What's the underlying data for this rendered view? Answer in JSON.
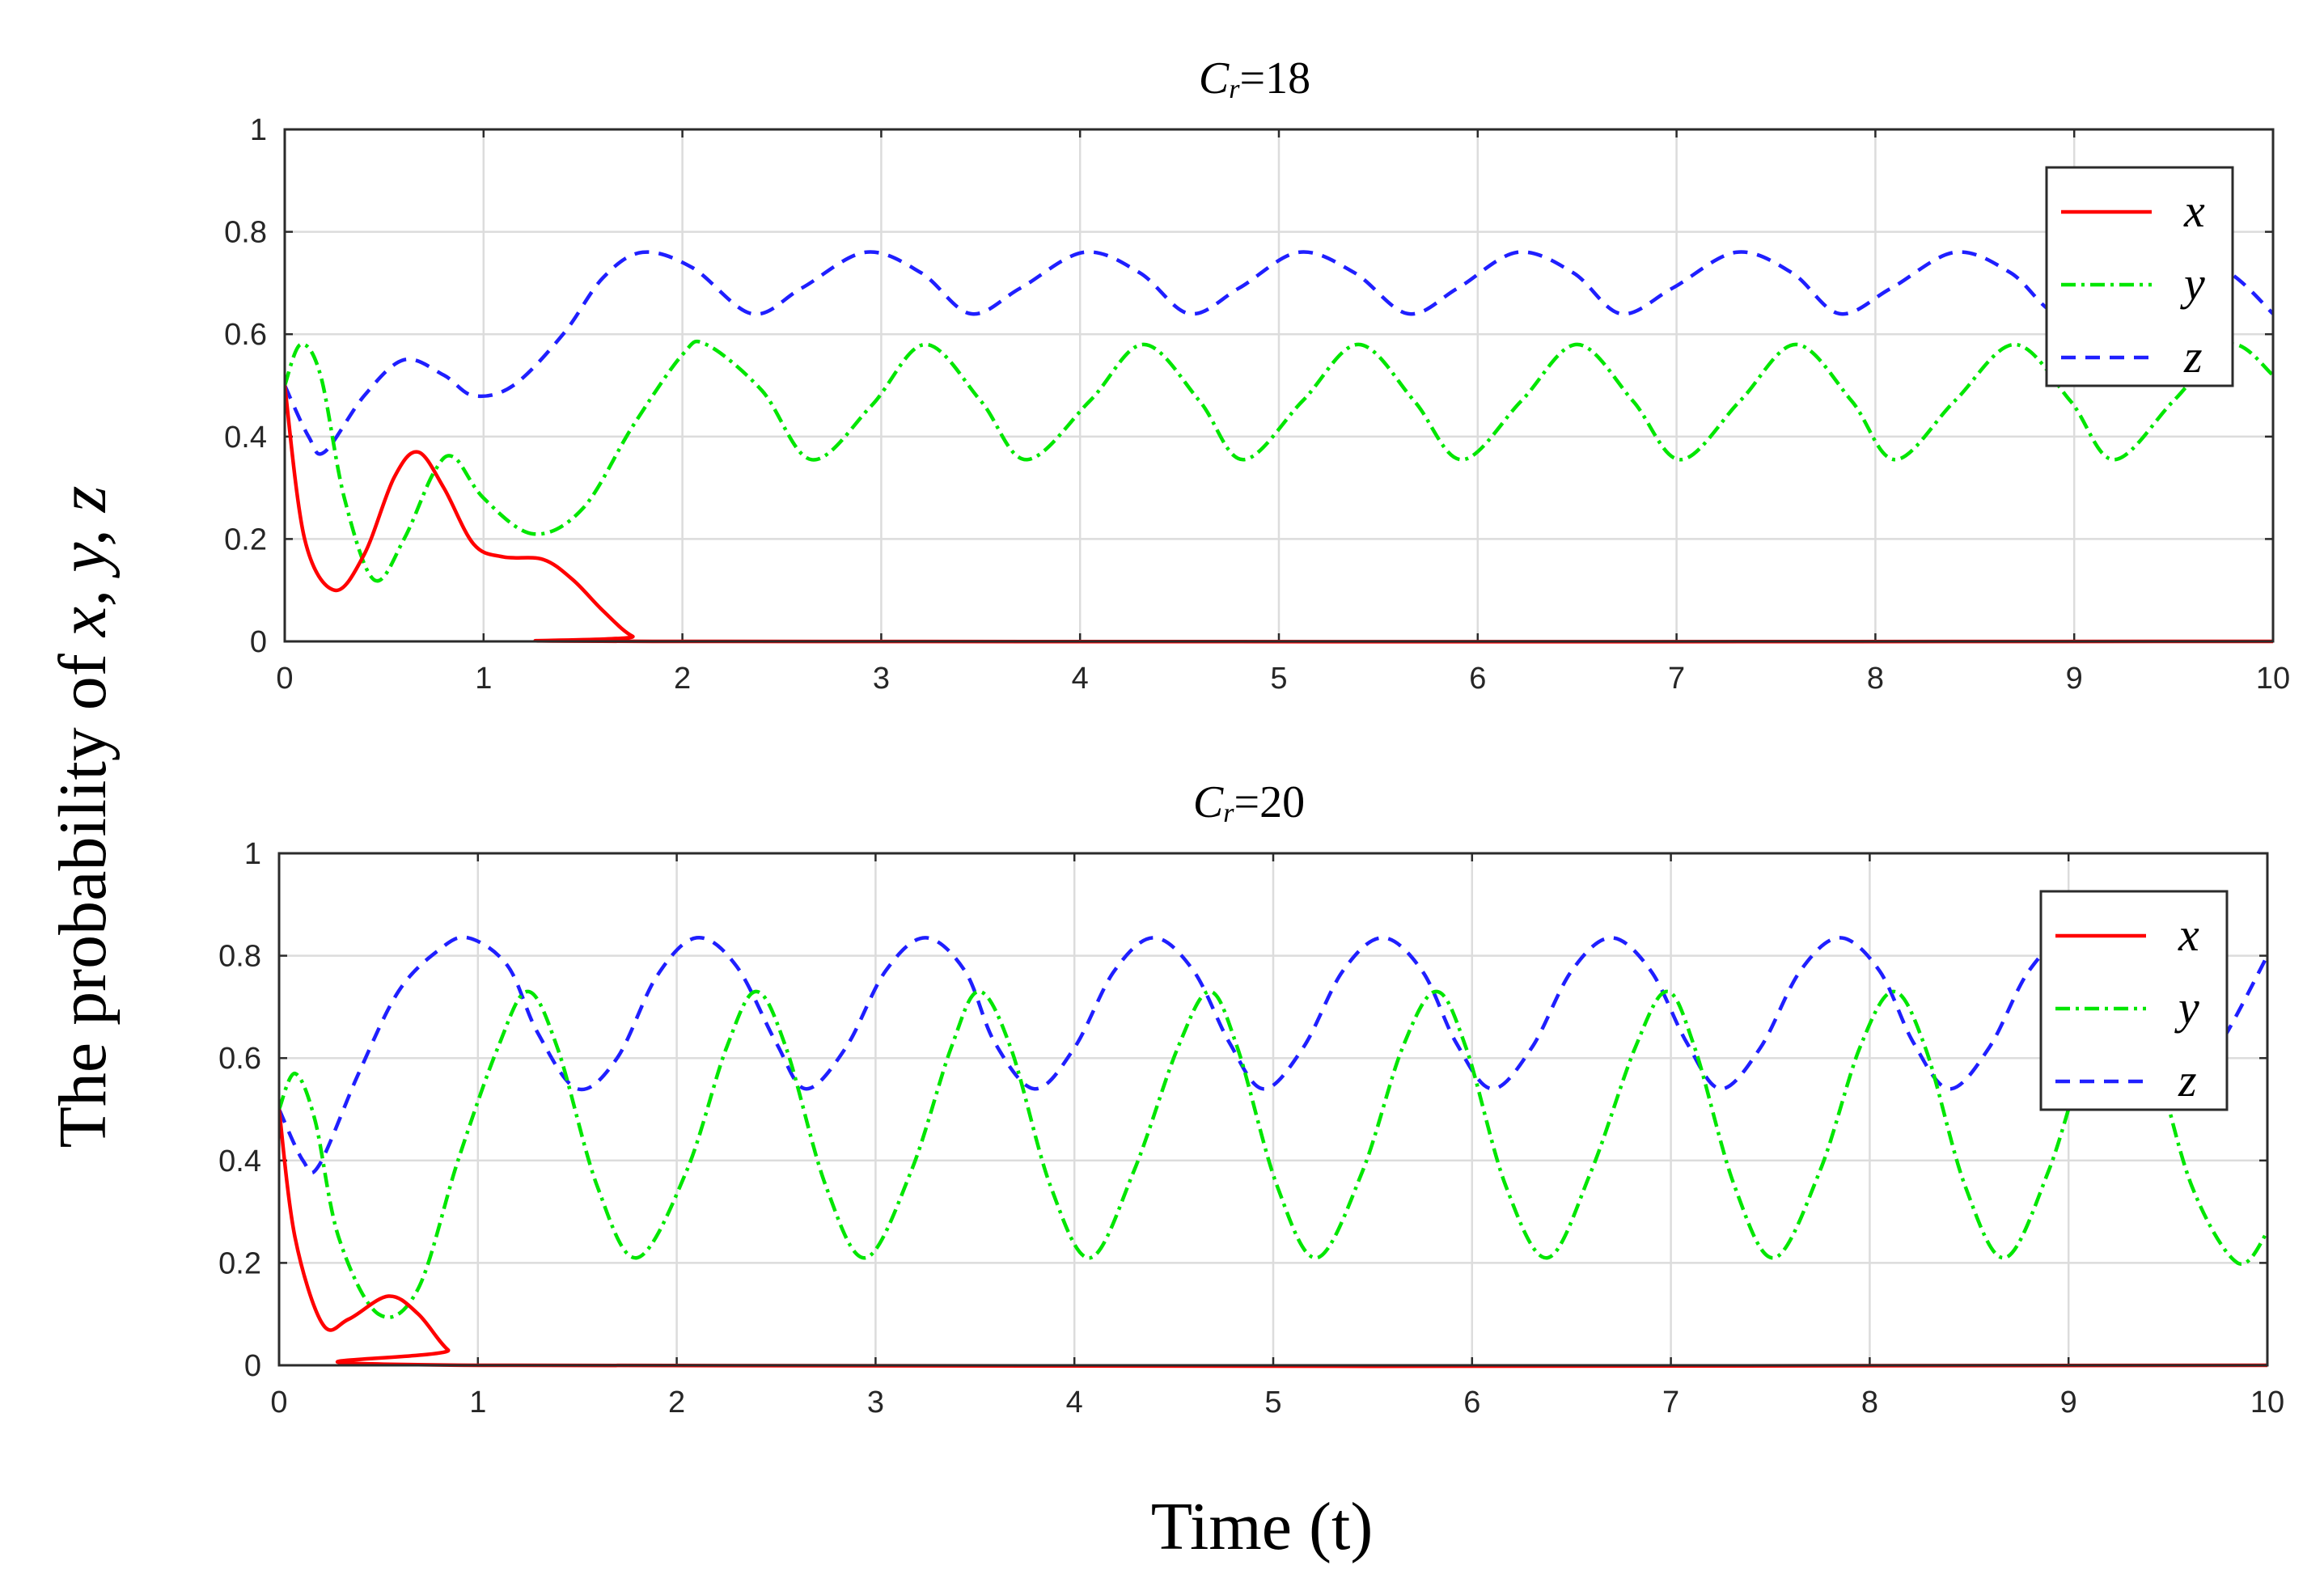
{
  "figure": {
    "xlabel": "Time (t)",
    "ylabel_prefix": "The probability of ",
    "ylabel_vars": "x, y, z"
  },
  "chart_data": [
    {
      "type": "line",
      "title": {
        "symbol": "C",
        "subscript": "r",
        "text": "=18"
      },
      "xlim": [
        0,
        10
      ],
      "ylim": [
        0,
        1
      ],
      "x_ticks": [
        "0",
        "1",
        "2",
        "3",
        "4",
        "5",
        "6",
        "7",
        "8",
        "9",
        "10"
      ],
      "y_ticks": [
        "0",
        "0.2",
        "0.4",
        "0.6",
        "0.8",
        "1"
      ],
      "grid": true,
      "legend_position": "top-right",
      "series": [
        {
          "name": "x",
          "color": "#ff0000",
          "style": "solid",
          "points": [
            [
              0,
              0.5
            ],
            [
              0.1,
              0.2
            ],
            [
              0.25,
              0.1
            ],
            [
              0.4,
              0.17
            ],
            [
              0.55,
              0.32
            ],
            [
              0.67,
              0.37
            ],
            [
              0.8,
              0.3
            ],
            [
              0.95,
              0.19
            ],
            [
              1.1,
              0.165
            ],
            [
              1.3,
              0.16
            ],
            [
              1.45,
              0.12
            ],
            [
              1.6,
              0.06
            ],
            [
              1.75,
              0.01
            ],
            [
              1.9,
              0.0
            ],
            [
              10,
              0.0
            ]
          ]
        },
        {
          "name": "y",
          "color": "#00e600",
          "style": "dashdot",
          "points": [
            [
              0,
              0.5
            ],
            [
              0.08,
              0.58
            ],
            [
              0.18,
              0.52
            ],
            [
              0.3,
              0.28
            ],
            [
              0.45,
              0.12
            ],
            [
              0.6,
              0.2
            ],
            [
              0.75,
              0.33
            ],
            [
              0.85,
              0.36
            ],
            [
              1.0,
              0.28
            ],
            [
              1.25,
              0.21
            ],
            [
              1.5,
              0.26
            ],
            [
              1.75,
              0.42
            ],
            [
              2.0,
              0.56
            ],
            [
              2.12,
              0.58
            ],
            [
              2.4,
              0.49
            ],
            [
              2.65,
              0.355
            ],
            [
              2.95,
              0.46
            ],
            [
              3.22,
              0.58
            ],
            [
              3.5,
              0.47
            ],
            [
              3.73,
              0.355
            ],
            [
              4.05,
              0.47
            ],
            [
              4.32,
              0.58
            ],
            [
              4.6,
              0.47
            ],
            [
              4.82,
              0.355
            ],
            [
              5.12,
              0.47
            ],
            [
              5.4,
              0.58
            ],
            [
              5.68,
              0.47
            ],
            [
              5.92,
              0.355
            ],
            [
              6.22,
              0.47
            ],
            [
              6.5,
              0.58
            ],
            [
              6.78,
              0.47
            ],
            [
              7.02,
              0.355
            ],
            [
              7.32,
              0.47
            ],
            [
              7.6,
              0.58
            ],
            [
              7.88,
              0.47
            ],
            [
              8.1,
              0.355
            ],
            [
              8.4,
              0.47
            ],
            [
              8.7,
              0.58
            ],
            [
              8.98,
              0.47
            ],
            [
              9.2,
              0.355
            ],
            [
              9.5,
              0.47
            ],
            [
              9.78,
              0.58
            ],
            [
              10,
              0.52
            ]
          ]
        },
        {
          "name": "z",
          "color": "#1f1fff",
          "style": "dashed",
          "points": [
            [
              0,
              0.5
            ],
            [
              0.12,
              0.4
            ],
            [
              0.2,
              0.37
            ],
            [
              0.4,
              0.48
            ],
            [
              0.6,
              0.55
            ],
            [
              0.8,
              0.52
            ],
            [
              0.95,
              0.48
            ],
            [
              1.15,
              0.5
            ],
            [
              1.4,
              0.6
            ],
            [
              1.6,
              0.71
            ],
            [
              1.8,
              0.76
            ],
            [
              2.05,
              0.73
            ],
            [
              2.35,
              0.64
            ],
            [
              2.6,
              0.69
            ],
            [
              2.92,
              0.76
            ],
            [
              3.2,
              0.72
            ],
            [
              3.45,
              0.64
            ],
            [
              3.7,
              0.69
            ],
            [
              4.02,
              0.76
            ],
            [
              4.3,
              0.72
            ],
            [
              4.55,
              0.64
            ],
            [
              4.8,
              0.69
            ],
            [
              5.1,
              0.76
            ],
            [
              5.38,
              0.72
            ],
            [
              5.65,
              0.64
            ],
            [
              5.9,
              0.69
            ],
            [
              6.2,
              0.76
            ],
            [
              6.48,
              0.72
            ],
            [
              6.72,
              0.64
            ],
            [
              6.98,
              0.69
            ],
            [
              7.3,
              0.76
            ],
            [
              7.58,
              0.72
            ],
            [
              7.82,
              0.64
            ],
            [
              8.08,
              0.69
            ],
            [
              8.4,
              0.76
            ],
            [
              8.68,
              0.72
            ],
            [
              8.92,
              0.64
            ],
            [
              9.18,
              0.69
            ],
            [
              9.5,
              0.76
            ],
            [
              9.78,
              0.72
            ],
            [
              10,
              0.64
            ]
          ]
        }
      ]
    },
    {
      "type": "line",
      "title": {
        "symbol": "C",
        "subscript": "r",
        "text": "=20"
      },
      "xlim": [
        0,
        10
      ],
      "ylim": [
        0,
        1
      ],
      "x_ticks": [
        "0",
        "1",
        "2",
        "3",
        "4",
        "5",
        "6",
        "7",
        "8",
        "9",
        "10"
      ],
      "y_ticks": [
        "0",
        "0.2",
        "0.4",
        "0.6",
        "0.8",
        "1"
      ],
      "grid": true,
      "legend_position": "top-right",
      "series": [
        {
          "name": "x",
          "color": "#ff0000",
          "style": "solid",
          "points": [
            [
              0,
              0.5
            ],
            [
              0.08,
              0.25
            ],
            [
              0.22,
              0.08
            ],
            [
              0.35,
              0.09
            ],
            [
              0.55,
              0.135
            ],
            [
              0.7,
              0.1
            ],
            [
              0.85,
              0.03
            ],
            [
              1.0,
              0.0
            ],
            [
              10,
              0.0
            ]
          ]
        },
        {
          "name": "y",
          "color": "#00e600",
          "style": "dashdot",
          "points": [
            [
              0,
              0.5
            ],
            [
              0.08,
              0.57
            ],
            [
              0.18,
              0.48
            ],
            [
              0.3,
              0.25
            ],
            [
              0.5,
              0.1
            ],
            [
              0.7,
              0.15
            ],
            [
              0.9,
              0.4
            ],
            [
              1.1,
              0.62
            ],
            [
              1.25,
              0.73
            ],
            [
              1.4,
              0.62
            ],
            [
              1.6,
              0.35
            ],
            [
              1.8,
              0.21
            ],
            [
              2.05,
              0.38
            ],
            [
              2.25,
              0.62
            ],
            [
              2.4,
              0.73
            ],
            [
              2.55,
              0.62
            ],
            [
              2.75,
              0.35
            ],
            [
              2.95,
              0.21
            ],
            [
              3.18,
              0.38
            ],
            [
              3.38,
              0.62
            ],
            [
              3.52,
              0.73
            ],
            [
              3.68,
              0.62
            ],
            [
              3.88,
              0.35
            ],
            [
              4.08,
              0.21
            ],
            [
              4.3,
              0.38
            ],
            [
              4.52,
              0.62
            ],
            [
              4.68,
              0.73
            ],
            [
              4.82,
              0.62
            ],
            [
              5.02,
              0.35
            ],
            [
              5.22,
              0.21
            ],
            [
              5.45,
              0.38
            ],
            [
              5.65,
              0.62
            ],
            [
              5.82,
              0.73
            ],
            [
              5.97,
              0.62
            ],
            [
              6.17,
              0.35
            ],
            [
              6.38,
              0.21
            ],
            [
              6.6,
              0.38
            ],
            [
              6.82,
              0.62
            ],
            [
              6.98,
              0.73
            ],
            [
              7.12,
              0.62
            ],
            [
              7.32,
              0.35
            ],
            [
              7.52,
              0.21
            ],
            [
              7.75,
              0.38
            ],
            [
              7.95,
              0.62
            ],
            [
              8.12,
              0.73
            ],
            [
              8.28,
              0.62
            ],
            [
              8.48,
              0.35
            ],
            [
              8.68,
              0.21
            ],
            [
              8.9,
              0.38
            ],
            [
              9.1,
              0.62
            ],
            [
              9.28,
              0.73
            ],
            [
              9.42,
              0.62
            ],
            [
              9.62,
              0.35
            ],
            [
              9.85,
              0.2
            ],
            [
              10,
              0.26
            ]
          ]
        },
        {
          "name": "z",
          "color": "#1f1fff",
          "style": "dashed",
          "points": [
            [
              0,
              0.5
            ],
            [
              0.12,
              0.4
            ],
            [
              0.2,
              0.39
            ],
            [
              0.4,
              0.57
            ],
            [
              0.6,
              0.73
            ],
            [
              0.8,
              0.81
            ],
            [
              0.95,
              0.835
            ],
            [
              1.15,
              0.78
            ],
            [
              1.3,
              0.65
            ],
            [
              1.5,
              0.54
            ],
            [
              1.7,
              0.6
            ],
            [
              1.9,
              0.76
            ],
            [
              2.1,
              0.835
            ],
            [
              2.3,
              0.78
            ],
            [
              2.5,
              0.63
            ],
            [
              2.65,
              0.54
            ],
            [
              2.85,
              0.62
            ],
            [
              3.05,
              0.77
            ],
            [
              3.25,
              0.835
            ],
            [
              3.45,
              0.77
            ],
            [
              3.6,
              0.63
            ],
            [
              3.8,
              0.54
            ],
            [
              4.0,
              0.62
            ],
            [
              4.2,
              0.77
            ],
            [
              4.4,
              0.835
            ],
            [
              4.6,
              0.77
            ],
            [
              4.78,
              0.63
            ],
            [
              4.95,
              0.54
            ],
            [
              5.15,
              0.62
            ],
            [
              5.35,
              0.77
            ],
            [
              5.55,
              0.835
            ],
            [
              5.75,
              0.77
            ],
            [
              5.92,
              0.63
            ],
            [
              6.1,
              0.54
            ],
            [
              6.3,
              0.62
            ],
            [
              6.5,
              0.77
            ],
            [
              6.7,
              0.835
            ],
            [
              6.9,
              0.77
            ],
            [
              7.08,
              0.63
            ],
            [
              7.25,
              0.54
            ],
            [
              7.45,
              0.62
            ],
            [
              7.65,
              0.77
            ],
            [
              7.85,
              0.835
            ],
            [
              8.05,
              0.77
            ],
            [
              8.22,
              0.63
            ],
            [
              8.4,
              0.54
            ],
            [
              8.6,
              0.62
            ],
            [
              8.8,
              0.77
            ],
            [
              9.0,
              0.835
            ],
            [
              9.2,
              0.77
            ],
            [
              9.38,
              0.63
            ],
            [
              9.55,
              0.54
            ],
            [
              9.75,
              0.62
            ],
            [
              10,
              0.8
            ]
          ]
        }
      ]
    }
  ]
}
